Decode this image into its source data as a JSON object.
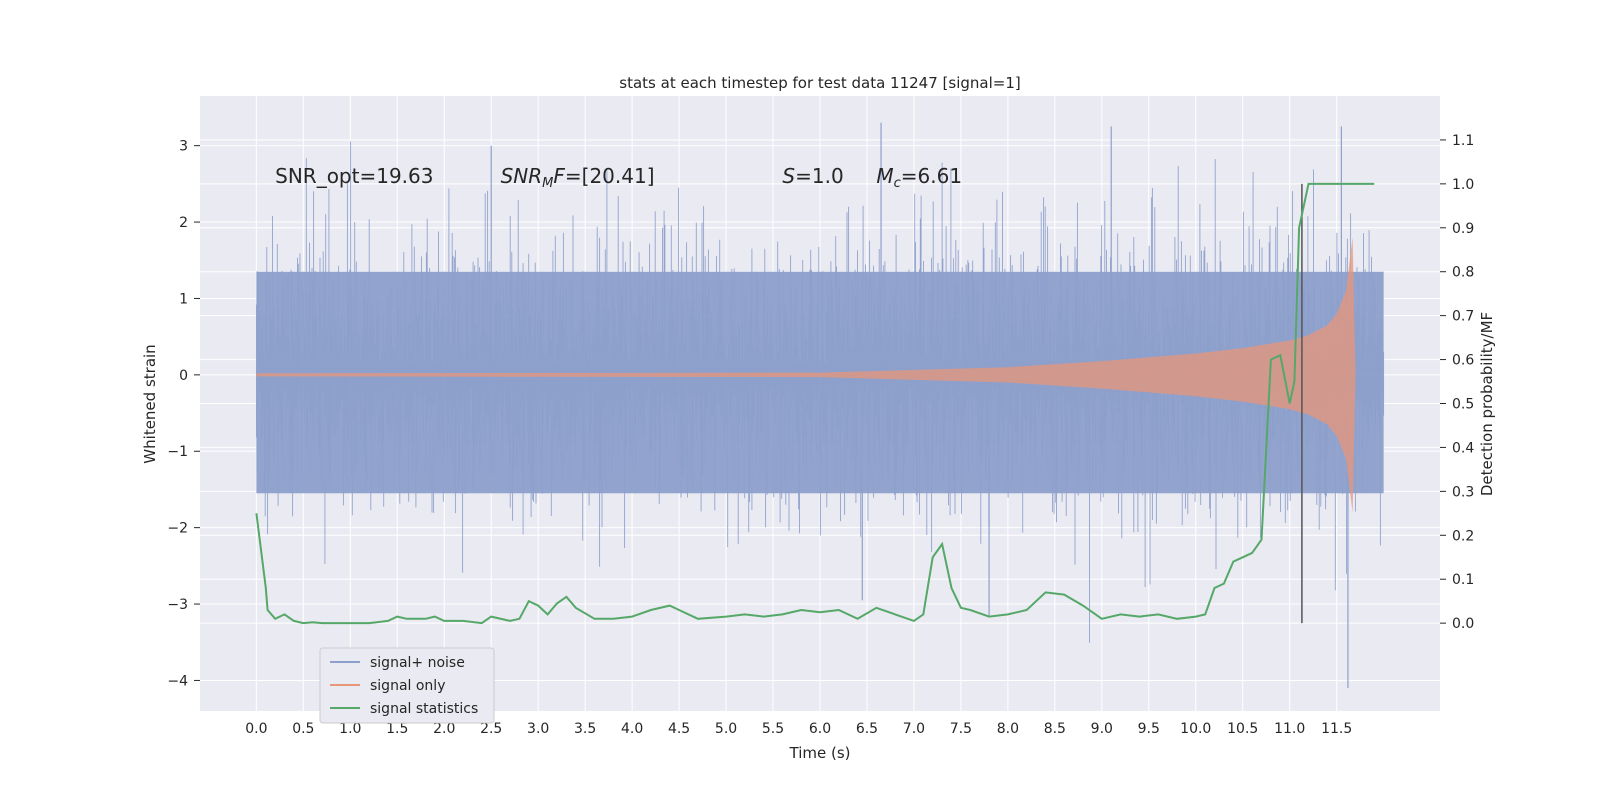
{
  "chart_data": {
    "type": "line",
    "title": "stats at each timestep for test data 11247 [signal=1]",
    "xlabel": "Time (s)",
    "ylabel": "Whitened strain",
    "ylabel_right": "Detection probability/MF",
    "xlim": [
      -0.6,
      12.6
    ],
    "ylim": [
      -4.4,
      3.65
    ],
    "ylim_right": [
      -0.2,
      1.2
    ],
    "grid": true,
    "legend_position": "lower-left",
    "x_ticks": [
      0.0,
      0.5,
      1.0,
      1.5,
      2.0,
      2.5,
      3.0,
      3.5,
      4.0,
      4.5,
      5.0,
      5.5,
      6.0,
      6.5,
      7.0,
      7.5,
      8.0,
      8.5,
      9.0,
      9.5,
      10.0,
      10.5,
      11.0,
      11.5
    ],
    "x_tick_labels": [
      "0.0",
      "0.5",
      "1.0",
      "1.5",
      "2.0",
      "2.5",
      "3.0",
      "3.5",
      "4.0",
      "4.5",
      "5.0",
      "5.5",
      "6.0",
      "6.5",
      "7.0",
      "7.5",
      "8.0",
      "8.5",
      "9.0",
      "9.5",
      "10.0",
      "10.5",
      "11.0",
      "11.5"
    ],
    "y_ticks": [
      -4,
      -3,
      -2,
      -1,
      0,
      1,
      2,
      3
    ],
    "y_tick_labels": [
      "−4",
      "−3",
      "−2",
      "−1",
      "0",
      "1",
      "2",
      "3"
    ],
    "y_ticks_right": [
      0.0,
      0.1,
      0.2,
      0.3,
      0.4,
      0.5,
      0.6,
      0.7,
      0.8,
      0.9,
      1.0,
      1.1
    ],
    "y_tick_labels_right": [
      "0.0",
      "0.1",
      "0.2",
      "0.3",
      "0.4",
      "0.5",
      "0.6",
      "0.7",
      "0.8",
      "0.9",
      "1.0",
      "1.1"
    ],
    "annotations": [
      {
        "text": "SNR_opt=19.63",
        "x": 0.2,
        "y": 2.6
      },
      {
        "text": "SNR_MF=[20.41]",
        "x": 2.6,
        "y": 2.6
      },
      {
        "text": "S=1.0",
        "x": 5.6,
        "y": 2.6
      },
      {
        "text": "M_c=6.61",
        "x": 6.6,
        "y": 2.6
      }
    ],
    "vertical_marker": {
      "x": 11.13,
      "y_right_range": [
        0.0,
        1.0
      ],
      "color": "#555555"
    },
    "series": [
      {
        "name": "signal+ noise",
        "color": "#8da0cb",
        "axis": "left",
        "style": "noise-band",
        "x_range": [
          0.0,
          12.0
        ],
        "typical_range": [
          -1.55,
          1.35
        ],
        "extremes": {
          "max": 3.3,
          "min": -4.1
        }
      },
      {
        "name": "signal only",
        "color": "#e8967a",
        "axis": "left",
        "style": "chirp-envelope",
        "x": [
          0.0,
          6.0,
          8.0,
          9.0,
          10.0,
          10.5,
          11.0,
          11.2,
          11.4,
          11.5,
          11.6,
          11.67,
          11.7,
          12.0
        ],
        "envelope": [
          0.02,
          0.03,
          0.1,
          0.18,
          0.28,
          0.35,
          0.45,
          0.52,
          0.65,
          0.8,
          1.1,
          1.8,
          0.0,
          0.0
        ]
      },
      {
        "name": "signal statistics",
        "color": "#55a868",
        "axis": "right",
        "style": "line",
        "x": [
          0.0,
          0.1,
          0.12,
          0.2,
          0.3,
          0.4,
          0.5,
          0.6,
          0.7,
          0.8,
          1.0,
          1.2,
          1.4,
          1.5,
          1.6,
          1.8,
          1.9,
          2.0,
          2.2,
          2.4,
          2.5,
          2.7,
          2.8,
          2.9,
          3.0,
          3.1,
          3.2,
          3.3,
          3.4,
          3.6,
          3.8,
          4.0,
          4.2,
          4.4,
          4.5,
          4.7,
          5.0,
          5.2,
          5.4,
          5.6,
          5.8,
          6.0,
          6.2,
          6.4,
          6.6,
          6.8,
          7.0,
          7.1,
          7.2,
          7.3,
          7.4,
          7.5,
          7.6,
          7.8,
          8.0,
          8.2,
          8.4,
          8.6,
          8.8,
          9.0,
          9.2,
          9.4,
          9.6,
          9.8,
          10.0,
          10.1,
          10.2,
          10.3,
          10.4,
          10.5,
          10.6,
          10.7,
          10.8,
          10.9,
          11.0,
          11.05,
          11.1,
          11.2,
          11.3,
          11.4,
          11.6,
          11.8,
          11.9
        ],
        "values": [
          0.25,
          0.08,
          0.03,
          0.01,
          0.02,
          0.005,
          0.0,
          0.002,
          0.0,
          0.0,
          0.0,
          0.0,
          0.005,
          0.015,
          0.01,
          0.01,
          0.015,
          0.005,
          0.005,
          0.0,
          0.015,
          0.005,
          0.01,
          0.05,
          0.04,
          0.02,
          0.045,
          0.06,
          0.035,
          0.01,
          0.01,
          0.015,
          0.03,
          0.04,
          0.03,
          0.01,
          0.015,
          0.02,
          0.015,
          0.02,
          0.03,
          0.025,
          0.03,
          0.01,
          0.035,
          0.02,
          0.005,
          0.02,
          0.15,
          0.18,
          0.08,
          0.035,
          0.03,
          0.015,
          0.02,
          0.03,
          0.07,
          0.065,
          0.04,
          0.01,
          0.02,
          0.015,
          0.02,
          0.01,
          0.015,
          0.02,
          0.08,
          0.09,
          0.14,
          0.15,
          0.16,
          0.19,
          0.6,
          0.61,
          0.5,
          0.55,
          0.9,
          1.0,
          1.0,
          1.0,
          1.0,
          1.0,
          1.0
        ]
      }
    ]
  }
}
